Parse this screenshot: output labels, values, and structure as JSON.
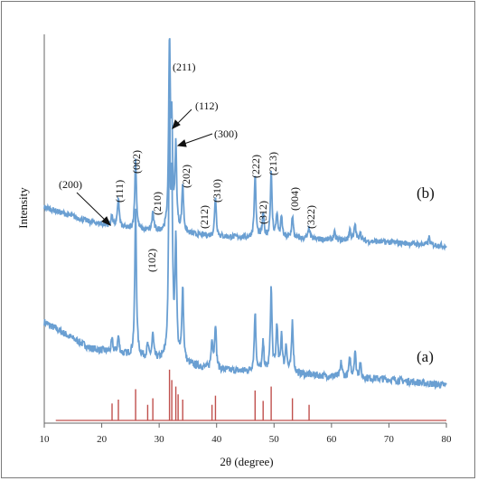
{
  "chart_data": {
    "type": "line",
    "xlabel": "2θ (degree)",
    "ylabel": "Intensity",
    "xlim": [
      10,
      80
    ],
    "xticks": [
      10,
      20,
      30,
      40,
      50,
      60,
      70,
      80
    ],
    "grid": false,
    "line_color": "#6a9fd2",
    "ref_color": "#c0504d",
    "series": [
      {
        "name": "(a)",
        "baseline": [
          [
            10,
            0.34
          ],
          [
            18,
            0.23
          ],
          [
            25,
            0.2
          ],
          [
            40,
            0.14
          ],
          [
            55,
            0.12
          ],
          [
            70,
            0.1
          ],
          [
            80,
            0.075
          ]
        ],
        "peaks": [
          [
            21.8,
            0.05
          ],
          [
            22.9,
            0.07
          ],
          [
            25.9,
            0.61
          ],
          [
            28.0,
            0.05
          ],
          [
            28.9,
            0.1
          ],
          [
            31.8,
            1.0
          ],
          [
            32.2,
            0.66
          ],
          [
            32.9,
            0.5
          ],
          [
            34.1,
            0.32
          ],
          [
            39.2,
            0.12
          ],
          [
            39.8,
            0.19
          ],
          [
            46.7,
            0.25
          ],
          [
            48.1,
            0.12
          ],
          [
            49.5,
            0.35
          ],
          [
            50.5,
            0.2
          ],
          [
            51.3,
            0.16
          ],
          [
            52.1,
            0.12
          ],
          [
            53.2,
            0.22
          ],
          [
            61.7,
            0.06
          ],
          [
            63.2,
            0.08
          ],
          [
            64.1,
            0.11
          ],
          [
            65.0,
            0.06
          ]
        ]
      },
      {
        "name": "(b)",
        "baseline": [
          [
            10,
            0.21
          ],
          [
            18,
            0.13
          ],
          [
            25,
            0.09
          ],
          [
            40,
            0.05
          ],
          [
            55,
            0.04
          ],
          [
            70,
            0.02
          ],
          [
            80,
            0.0
          ]
        ],
        "peaks": [
          [
            21.8,
            0.06
          ],
          [
            22.9,
            0.16
          ],
          [
            25.9,
            0.38
          ],
          [
            28.9,
            0.1
          ],
          [
            31.8,
            1.0
          ],
          [
            32.2,
            0.52
          ],
          [
            32.9,
            0.45
          ],
          [
            34.1,
            0.26
          ],
          [
            39.8,
            0.22
          ],
          [
            46.7,
            0.34
          ],
          [
            48.1,
            0.13
          ],
          [
            49.5,
            0.35
          ],
          [
            50.5,
            0.13
          ],
          [
            51.3,
            0.11
          ],
          [
            53.2,
            0.12
          ],
          [
            56.1,
            0.06
          ],
          [
            60.5,
            0.04
          ],
          [
            63.2,
            0.06
          ],
          [
            64.1,
            0.09
          ],
          [
            65.0,
            0.05
          ],
          [
            77.0,
            0.04
          ]
        ]
      }
    ],
    "reference_peaks": [
      {
        "x": 21.8,
        "h": 0.26
      },
      {
        "x": 22.9,
        "h": 0.32
      },
      {
        "x": 25.9,
        "h": 0.48
      },
      {
        "x": 28.0,
        "h": 0.24
      },
      {
        "x": 28.9,
        "h": 0.34
      },
      {
        "x": 31.8,
        "h": 0.78
      },
      {
        "x": 32.2,
        "h": 0.62
      },
      {
        "x": 32.9,
        "h": 0.52
      },
      {
        "x": 33.3,
        "h": 0.4
      },
      {
        "x": 34.1,
        "h": 0.32
      },
      {
        "x": 39.2,
        "h": 0.24
      },
      {
        "x": 39.8,
        "h": 0.38
      },
      {
        "x": 46.7,
        "h": 0.46
      },
      {
        "x": 48.1,
        "h": 0.3
      },
      {
        "x": 49.5,
        "h": 0.52
      },
      {
        "x": 53.2,
        "h": 0.34
      },
      {
        "x": 56.1,
        "h": 0.24
      }
    ],
    "series_labels": [
      "(b)",
      "(a)"
    ],
    "peak_labels": [
      "(200)",
      "(111)",
      "(002)",
      "(210)",
      "(102)",
      "(211)",
      "(112)",
      "(300)",
      "(202)",
      "(212)",
      "(310)",
      "(222)",
      "(312)",
      "(213)",
      "(004)",
      "(322)"
    ]
  }
}
